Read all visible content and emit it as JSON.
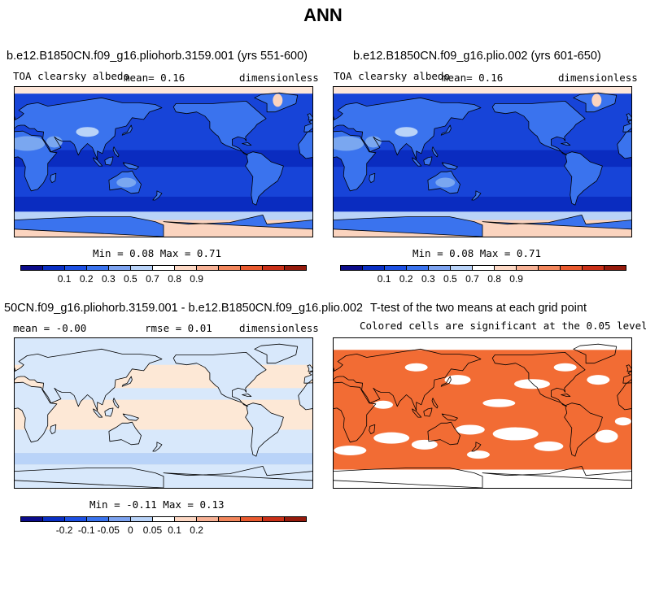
{
  "title": "ANN",
  "colors": {
    "scale": [
      "#0c0c8a",
      "#0a2fc4",
      "#1d50e3",
      "#3a73ee",
      "#7da3f0",
      "#b9d3f8",
      "#ffffff",
      "#fdd8c4",
      "#f7b195",
      "#f2865c",
      "#e95a2f",
      "#c93018",
      "#951a0c"
    ],
    "land_high": "#7aa7f0",
    "ocean": "#1744d8",
    "ocean_band": "#0a2cc0",
    "ice": "#fbd4bf",
    "ice_light": "#fde6d9",
    "diff_base": "#fde8d6",
    "diff_neg": "#d8e8fb",
    "ttest": "#f26c34"
  },
  "panels": [
    {
      "title": "b.e12.B1850CN.f09_g16.pliohorb.3159.001 (yrs 551-600)",
      "left_label": "TOA clearsky albedo",
      "mid_label": "mean=    0.16",
      "right_label": "dimensionless",
      "stats": "Min =   0.08 Max =   0.71",
      "colorbar_labels": [
        "0.1",
        "0.2",
        "0.3",
        "0.5",
        "0.7",
        "0.8",
        "0.9"
      ]
    },
    {
      "title": "b.e12.B1850CN.f09_g16.plio.002 (yrs 601-650)",
      "left_label": "TOA clearsky albedo",
      "mid_label": "mean=    0.16",
      "right_label": "dimensionless",
      "stats": "Min =   0.08 Max =   0.71",
      "colorbar_labels": [
        "0.1",
        "0.2",
        "0.3",
        "0.5",
        "0.7",
        "0.8",
        "0.9"
      ]
    },
    {
      "title": "50CN.f09_g16.pliohorb.3159.001 - b.e12.B1850CN.f09_g16.plio.002",
      "left_label": "mean =  -0.00",
      "mid_label": "rmse =    0.01",
      "right_label": "dimensionless",
      "stats": "Min =  -0.11 Max =   0.13",
      "colorbar_labels": [
        "-0.2",
        "-0.1",
        "-0.05",
        "0",
        "0.05",
        "0.1",
        "0.2"
      ]
    },
    {
      "title": "T-test of the two means at each grid point",
      "subtitle": "Colored cells are significant at the 0.05 level"
    }
  ],
  "chart_data": [
    {
      "type": "heatmap",
      "title": "b.e12.B1850CN.f09_g16.pliohorb.3159.001 (yrs 551-600)",
      "variable": "TOA clearsky albedo",
      "units": "dimensionless",
      "mean": 0.16,
      "min": 0.08,
      "max": 0.71,
      "levels": [
        0.1,
        0.2,
        0.3,
        0.5,
        0.7,
        0.8,
        0.9
      ]
    },
    {
      "type": "heatmap",
      "title": "b.e12.B1850CN.f09_g16.plio.002 (yrs 601-650)",
      "variable": "TOA clearsky albedo",
      "units": "dimensionless",
      "mean": 0.16,
      "min": 0.08,
      "max": 0.71,
      "levels": [
        0.1,
        0.2,
        0.3,
        0.5,
        0.7,
        0.8,
        0.9
      ]
    },
    {
      "type": "heatmap",
      "title": "50CN.f09_g16.pliohorb.3159.001 - b.e12.B1850CN.f09_g16.plio.002",
      "units": "dimensionless",
      "mean": -0.0,
      "rmse": 0.01,
      "min": -0.11,
      "max": 0.13,
      "levels": [
        -0.2,
        -0.1,
        -0.05,
        0,
        0.05,
        0.1,
        0.2
      ]
    },
    {
      "type": "heatmap",
      "title": "T-test of the two means at each grid point",
      "significance_level": 0.05
    }
  ]
}
